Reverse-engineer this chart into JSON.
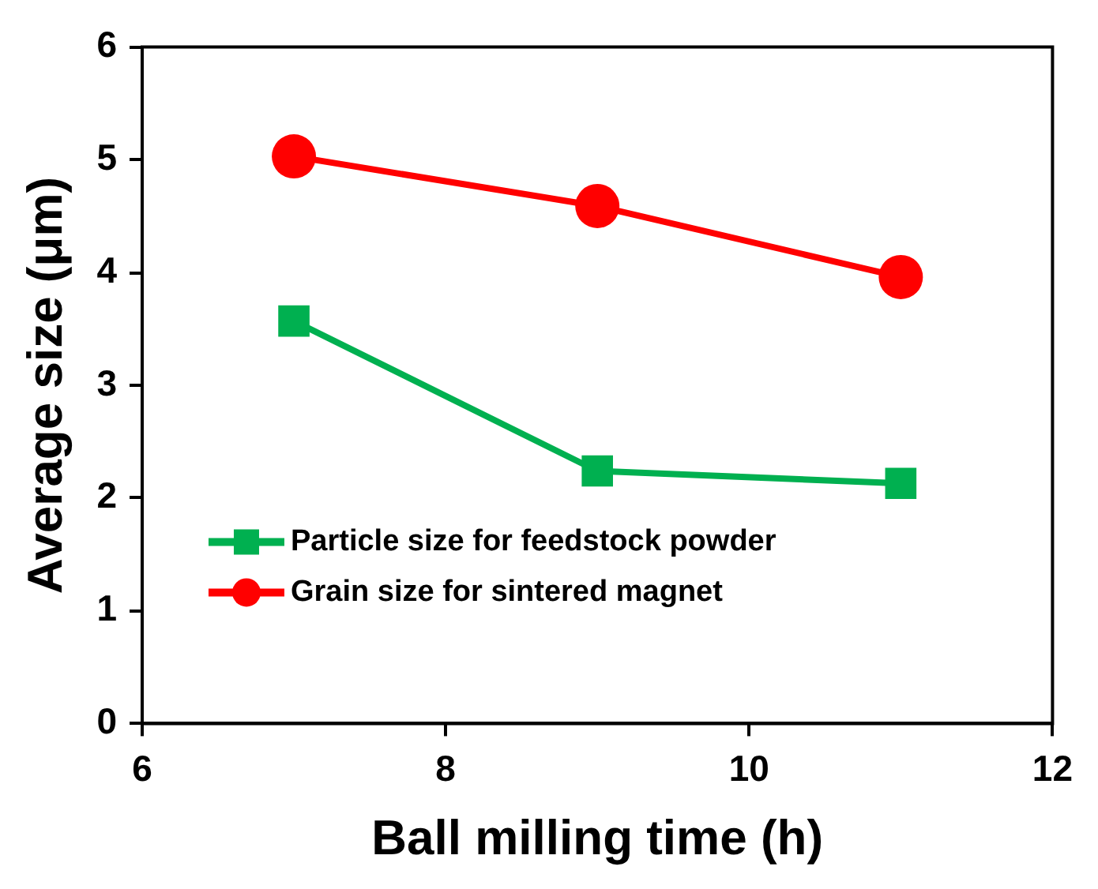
{
  "chart_data": {
    "type": "line",
    "xlabel": "Ball milling time (h)",
    "ylabel": "Average size (μm)",
    "x": [
      7,
      9,
      11
    ],
    "series": [
      {
        "name": "Particle size for feedstock powder",
        "color": "#00b050",
        "values": [
          3.57,
          2.24,
          2.13
        ],
        "marker": "square"
      },
      {
        "name": "Grain size for sintered magnet",
        "color": "#ff0000",
        "values": [
          5.03,
          4.59,
          3.96
        ],
        "marker": "circle"
      }
    ],
    "xlim": [
      6,
      12
    ],
    "xticks": [
      6,
      8,
      10,
      12
    ],
    "ylim": [
      0,
      6
    ],
    "yticks": [
      0,
      1,
      2,
      3,
      4,
      5,
      6
    ],
    "grid": false,
    "legend": "bottom",
    "line_style": "solid"
  }
}
